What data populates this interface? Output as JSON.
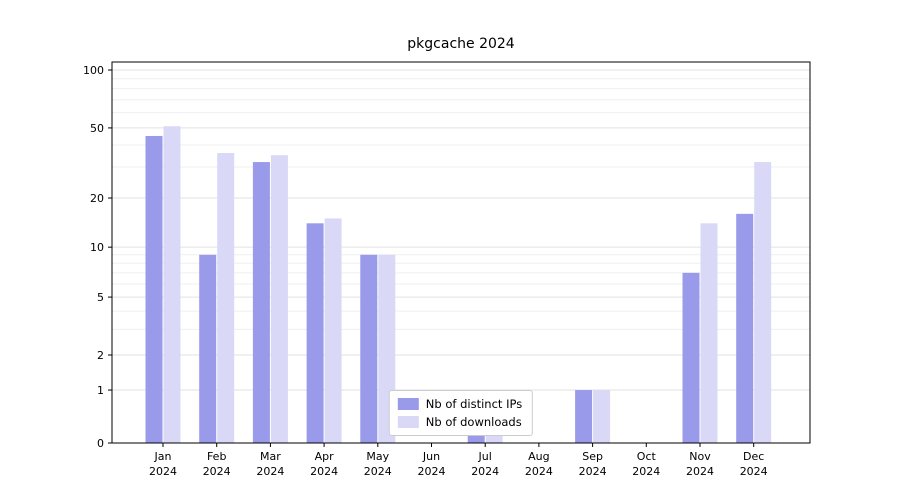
{
  "chart_data": {
    "type": "bar",
    "title": "pkgcache 2024",
    "y_scale": "symlog",
    "months": [
      "Jan",
      "Feb",
      "Mar",
      "Apr",
      "May",
      "Jun",
      "Jul",
      "Aug",
      "Sep",
      "Oct",
      "Nov",
      "Dec"
    ],
    "year": "2024",
    "series": [
      {
        "name": "Nb of distinct IPs",
        "color": "#9a9aeb",
        "values": [
          45,
          9,
          32,
          14,
          9,
          0,
          1,
          0,
          1,
          0,
          7,
          16
        ]
      },
      {
        "name": "Nb of downloads",
        "color": "#d9d9f7",
        "values": [
          51,
          36,
          35,
          15,
          9,
          0,
          1,
          0,
          1,
          0,
          14,
          32
        ]
      }
    ],
    "yticks": [
      0,
      1,
      2,
      5,
      10,
      20,
      50,
      100
    ],
    "y_minor_gridlines": [
      3,
      4,
      6,
      7,
      8,
      9,
      30,
      40,
      60,
      70,
      80,
      90
    ],
    "ylim": [
      0,
      110
    ],
    "grid": true,
    "legend_position": "lower center"
  }
}
